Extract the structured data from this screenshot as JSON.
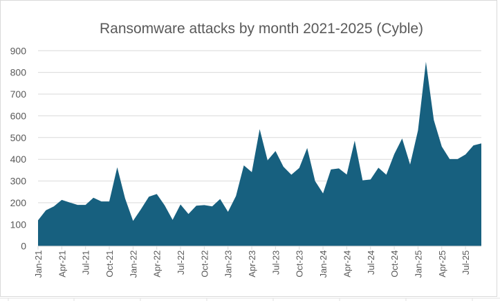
{
  "chart_data": {
    "type": "area",
    "title": "Ransomware attacks by month 2021-2025 (Cyble)",
    "xlabel": "",
    "ylabel": "",
    "ylim": [
      0,
      900
    ],
    "yticks": [
      0,
      100,
      200,
      300,
      400,
      500,
      600,
      700,
      800,
      900
    ],
    "grid": true,
    "legend": "none",
    "color": "#17607F",
    "x_tick_labels": [
      "Jan-21",
      "Apr-21",
      "Jul-21",
      "Oct-21",
      "Jan-22",
      "Apr-22",
      "Jul-22",
      "Oct-22",
      "Jan-23",
      "Apr-23",
      "Jul-23",
      "Oct-23",
      "Jan-24",
      "Apr-24",
      "Jul-24",
      "Oct-24",
      "Jan-25",
      "Apr-25",
      "Jul-25"
    ],
    "x": [
      "Jan-21",
      "Feb-21",
      "Mar-21",
      "Apr-21",
      "May-21",
      "Jun-21",
      "Jul-21",
      "Aug-21",
      "Sep-21",
      "Oct-21",
      "Nov-21",
      "Dec-21",
      "Jan-22",
      "Feb-22",
      "Mar-22",
      "Apr-22",
      "May-22",
      "Jun-22",
      "Jul-22",
      "Aug-22",
      "Sep-22",
      "Oct-22",
      "Nov-22",
      "Dec-22",
      "Jan-23",
      "Feb-23",
      "Mar-23",
      "Apr-23",
      "May-23",
      "Jun-23",
      "Jul-23",
      "Aug-23",
      "Sep-23",
      "Oct-23",
      "Nov-23",
      "Dec-23",
      "Jan-24",
      "Feb-24",
      "Mar-24",
      "Apr-24",
      "May-24",
      "Jun-24",
      "Jul-24",
      "Aug-24",
      "Sep-24",
      "Oct-24",
      "Nov-24",
      "Dec-24",
      "Jan-25",
      "Feb-25",
      "Mar-25",
      "Apr-25",
      "May-25",
      "Jun-25",
      "Jul-25",
      "Aug-25",
      "Sep-25"
    ],
    "values": [
      119,
      165,
      183,
      213,
      201,
      190,
      190,
      223,
      206,
      206,
      363,
      220,
      116,
      170,
      228,
      240,
      188,
      121,
      192,
      148,
      186,
      189,
      183,
      217,
      158,
      231,
      372,
      341,
      539,
      395,
      438,
      366,
      329,
      360,
      452,
      300,
      243,
      353,
      358,
      330,
      486,
      303,
      307,
      361,
      329,
      424,
      496,
      376,
      533,
      849,
      581,
      459,
      401,
      401,
      422,
      464,
      473
    ]
  }
}
